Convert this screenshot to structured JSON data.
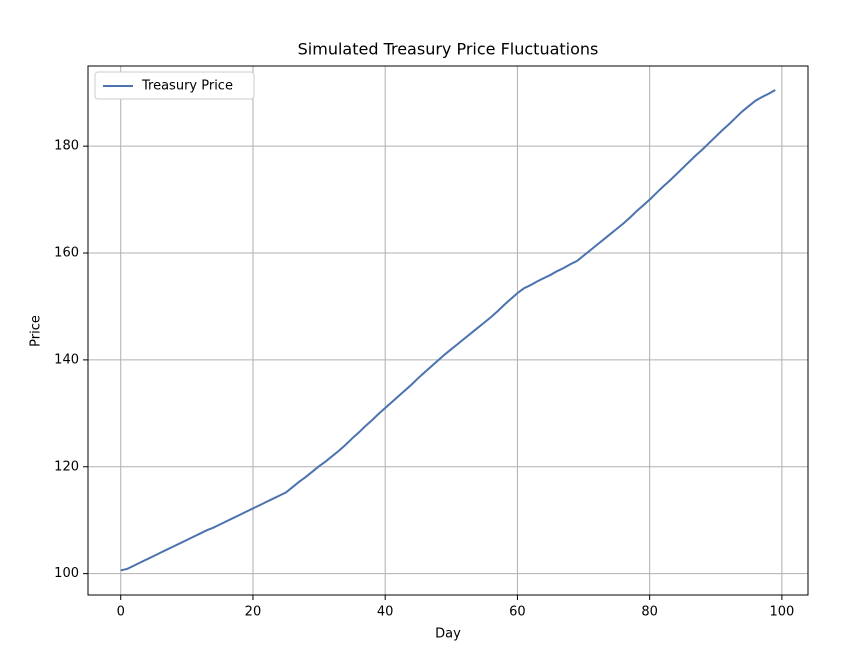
{
  "chart_data": {
    "type": "line",
    "title": "Simulated Treasury Price Fluctuations",
    "x_label": "Day",
    "y_label": "Price",
    "x": [
      0,
      1,
      2,
      3,
      4,
      5,
      6,
      7,
      8,
      9,
      10,
      11,
      12,
      13,
      14,
      15,
      16,
      17,
      18,
      19,
      20,
      21,
      22,
      23,
      24,
      25,
      26,
      27,
      28,
      29,
      30,
      31,
      32,
      33,
      34,
      35,
      36,
      37,
      38,
      39,
      40,
      41,
      42,
      43,
      44,
      45,
      46,
      47,
      48,
      49,
      50,
      51,
      52,
      53,
      54,
      55,
      56,
      57,
      58,
      59,
      60,
      61,
      62,
      63,
      64,
      65,
      66,
      67,
      68,
      69,
      70,
      71,
      72,
      73,
      74,
      75,
      76,
      77,
      78,
      79,
      80,
      81,
      82,
      83,
      84,
      85,
      86,
      87,
      88,
      89,
      90,
      91,
      92,
      93,
      94,
      95,
      96,
      97,
      98,
      99
    ],
    "series": [
      {
        "name": "Treasury Price",
        "color": "#4c72b0",
        "values": [
          100.6,
          100.9,
          101.5,
          102.1,
          102.7,
          103.3,
          103.9,
          104.5,
          105.1,
          105.7,
          106.3,
          106.9,
          107.5,
          108.1,
          108.6,
          109.2,
          109.8,
          110.4,
          111.0,
          111.6,
          112.2,
          112.8,
          113.4,
          114.0,
          114.6,
          115.2,
          116.2,
          117.2,
          118.1,
          119.1,
          120.1,
          121.0,
          122.0,
          123.0,
          124.1,
          125.3,
          126.4,
          127.6,
          128.7,
          129.9,
          131.0,
          132.1,
          133.2,
          134.3,
          135.4,
          136.6,
          137.7,
          138.8,
          139.9,
          141.0,
          142.0,
          143.0,
          144.0,
          145.0,
          146.0,
          147.0,
          148.0,
          149.1,
          150.3,
          151.4,
          152.5,
          153.4,
          154.0,
          154.7,
          155.3,
          155.9,
          156.6,
          157.2,
          157.9,
          158.5,
          159.5,
          160.5,
          161.5,
          162.5,
          163.5,
          164.5,
          165.5,
          166.6,
          167.8,
          168.9,
          170.0,
          171.2,
          172.4,
          173.5,
          174.7,
          175.9,
          177.1,
          178.3,
          179.4,
          180.6,
          181.8,
          183.0,
          184.1,
          185.3,
          186.5,
          187.5,
          188.5,
          189.2,
          189.8,
          190.5
        ]
      }
    ],
    "xlim": [
      -4.95,
      103.95
    ],
    "ylim": [
      96.0,
      195.0
    ],
    "xticks": [
      0,
      20,
      40,
      60,
      80,
      100
    ],
    "yticks": [
      100,
      120,
      140,
      160,
      180
    ],
    "grid": true,
    "legend": "upper-left"
  }
}
